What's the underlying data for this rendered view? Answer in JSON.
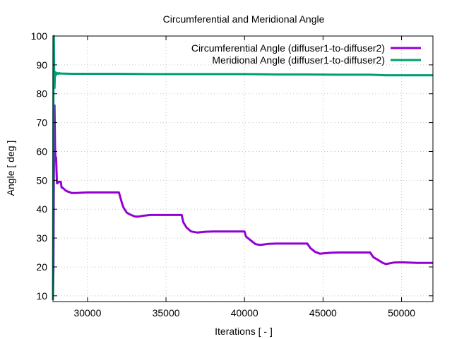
{
  "chart_data": {
    "type": "line",
    "title": "Circumferential and Meridional Angle",
    "xlabel": "Iterations [ - ]",
    "ylabel": "Angle [ deg ]",
    "xlim": [
      27800,
      52000
    ],
    "ylim": [
      8,
      100
    ],
    "xticks": [
      30000,
      35000,
      40000,
      45000,
      50000
    ],
    "yticks": [
      10,
      20,
      30,
      40,
      50,
      60,
      70,
      80,
      90,
      100
    ],
    "grid": true,
    "legend_position": "top-right",
    "series": [
      {
        "name": "Circumferential Angle (diffuser1-to-diffuser2)",
        "color": "#9400d3",
        "x": [
          27800,
          27830,
          27860,
          27900,
          27930,
          27960,
          28000,
          28050,
          28100,
          28150,
          28200,
          28300,
          28350,
          28400,
          28500,
          28600,
          28800,
          29000,
          29300,
          29600,
          30000,
          31000,
          32000,
          32200,
          32300,
          32500,
          32700,
          33000,
          33200,
          33500,
          34000,
          35000,
          36000,
          36100,
          36300,
          36600,
          37000,
          37500,
          38000,
          39000,
          40000,
          40100,
          40400,
          40700,
          41000,
          41500,
          42000,
          43000,
          44000,
          44200,
          44500,
          44800,
          45000,
          45500,
          46000,
          47000,
          48000,
          48200,
          48500,
          48800,
          49000,
          49500,
          50000,
          51000,
          52000
        ],
        "y": [
          10,
          20,
          50,
          76,
          62,
          57,
          58,
          49,
          49,
          49.5,
          49.5,
          49.5,
          47.5,
          47.5,
          47,
          46.5,
          46,
          45.6,
          45.6,
          45.7,
          45.8,
          45.8,
          45.8,
          42,
          40.5,
          38.8,
          38.2,
          37.5,
          37.4,
          37.7,
          38,
          38,
          38,
          35.5,
          33.7,
          32.3,
          31.9,
          32.2,
          32.3,
          32.3,
          32.3,
          30.5,
          29.2,
          27.9,
          27.6,
          28,
          28.1,
          28.1,
          28.1,
          26.5,
          25.2,
          24.6,
          24.7,
          24.9,
          25,
          25,
          25,
          23.4,
          22.4,
          21.4,
          21,
          21.5,
          21.6,
          21.4,
          21.4
        ]
      },
      {
        "name": "Meridional Angle (diffuser1-to-diffuser2)",
        "color": "#009e73",
        "x": [
          27800,
          27820,
          27840,
          27860,
          27880,
          27900,
          27920,
          27950,
          27980,
          28000,
          28050,
          28100,
          28150,
          28200,
          28250,
          28300,
          29000,
          30000,
          32000,
          34000,
          36000,
          38000,
          40000,
          42000,
          44000,
          46000,
          48000,
          49000,
          50000,
          52000
        ],
        "y": [
          8.5,
          45,
          100,
          100,
          85,
          82,
          86,
          87.5,
          87,
          86.5,
          87.2,
          87,
          86.9,
          87.2,
          87,
          87,
          86.9,
          86.9,
          86.9,
          86.8,
          86.8,
          86.8,
          86.8,
          86.7,
          86.7,
          86.6,
          86.6,
          86.4,
          86.4,
          86.4
        ]
      }
    ]
  }
}
